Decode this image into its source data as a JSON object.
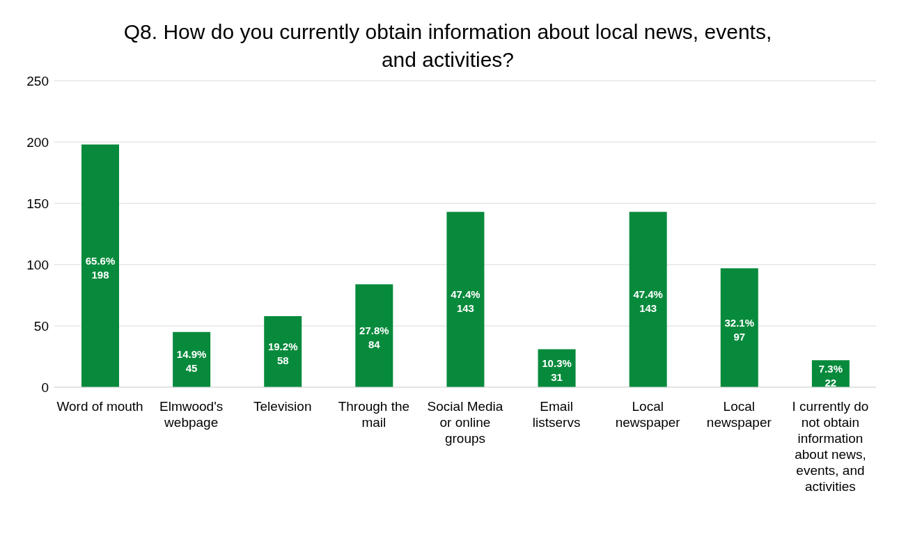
{
  "chart_data": {
    "type": "bar",
    "title": "Q8. How do you currently obtain information about local news, events, and activities?",
    "categories": [
      "Word of mouth",
      "Elmwood's webpage",
      "Television",
      "Through the mail",
      "Social Media or online groups",
      "Email listservs",
      "Local newspaper",
      "Local newspaper",
      "I currently do not obtain information about news, events, and activities"
    ],
    "values": [
      198,
      45,
      58,
      84,
      143,
      31,
      143,
      97,
      22
    ],
    "value_labels": [
      "65.6%\n198",
      "14.9%\n45",
      "19.2%\n58",
      "27.8%\n84",
      "47.4%\n143",
      "10.3%\n31",
      "47.4%\n143",
      "32.1%\n97",
      "7.3%\n22"
    ],
    "color": "#078a3c",
    "ylim": [
      0,
      250
    ],
    "yticks": [
      0,
      50,
      100,
      150,
      200,
      250
    ],
    "grid": "y"
  }
}
